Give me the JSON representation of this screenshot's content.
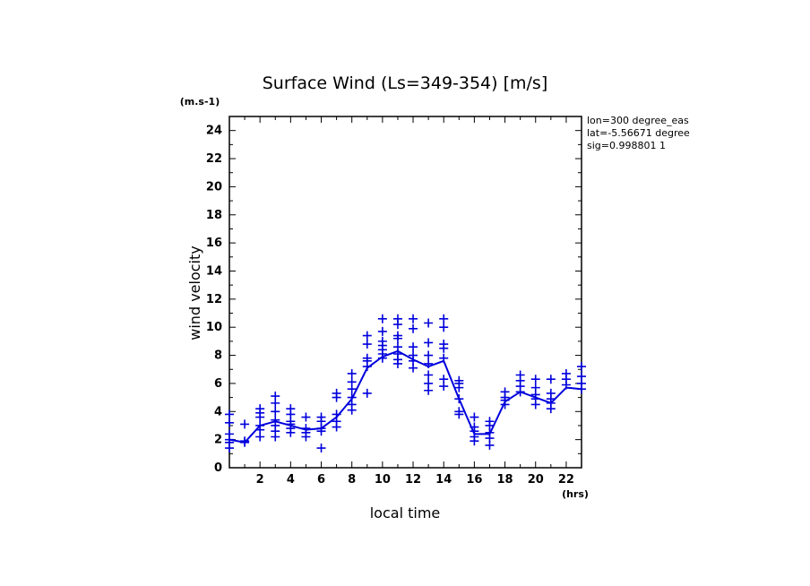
{
  "chart_data": {
    "type": "scatter",
    "title": "Surface Wind  (Ls=349-354) [m/s]",
    "xlabel": "local time",
    "ylabel": "wind velocity",
    "x_unit": "(hrs)",
    "y_unit": "(m.s-1)",
    "xlim": [
      0,
      23
    ],
    "ylim": [
      0,
      25
    ],
    "x_ticks": [
      2,
      4,
      6,
      8,
      10,
      12,
      14,
      16,
      18,
      20,
      22
    ],
    "y_ticks": [
      0,
      2,
      4,
      6,
      8,
      10,
      12,
      14,
      16,
      18,
      20,
      22,
      24
    ],
    "info": [
      "lon=300 degree_eas",
      "lat=-5.56671 degree",
      "sig=0.998801 1"
    ],
    "mean_line": {
      "name": "mean",
      "x": [
        0,
        1,
        2,
        3,
        4,
        5,
        6,
        7,
        8,
        9,
        10,
        11,
        12,
        13,
        14,
        15,
        16,
        17,
        18,
        19,
        20,
        21,
        22,
        23
      ],
      "y": [
        2.0,
        1.8,
        3.0,
        3.3,
        3.0,
        2.7,
        2.8,
        3.6,
        4.9,
        7.1,
        7.9,
        8.3,
        7.7,
        7.2,
        7.6,
        4.9,
        2.4,
        2.4,
        4.7,
        5.4,
        5.0,
        4.6,
        5.7,
        5.6
      ]
    },
    "samples": [
      {
        "x": 0,
        "y": [
          3.2,
          2.4,
          2.0,
          1.8,
          1.4,
          3.8
        ]
      },
      {
        "x": 1,
        "y": [
          1.9,
          1.8,
          3.1
        ]
      },
      {
        "x": 2,
        "y": [
          4.2,
          3.9,
          3.6,
          3.0,
          2.7,
          2.2
        ]
      },
      {
        "x": 3,
        "y": [
          5.1,
          4.6,
          4.0,
          3.4,
          3.0,
          2.6,
          2.2
        ]
      },
      {
        "x": 4,
        "y": [
          4.2,
          3.8,
          3.3,
          3.1,
          2.8,
          2.5
        ]
      },
      {
        "x": 5,
        "y": [
          3.6,
          2.8,
          2.5,
          2.2
        ]
      },
      {
        "x": 6,
        "y": [
          3.6,
          3.3,
          2.8,
          2.6,
          1.4
        ]
      },
      {
        "x": 7,
        "y": [
          5.3,
          5.0,
          3.8,
          3.3,
          2.9
        ]
      },
      {
        "x": 8,
        "y": [
          6.7,
          6.1,
          5.6,
          5.0,
          4.5,
          4.1
        ]
      },
      {
        "x": 9,
        "y": [
          9.4,
          8.8,
          7.8,
          7.6,
          7.2,
          5.3
        ]
      },
      {
        "x": 10,
        "y": [
          10.6,
          9.7,
          9.0,
          8.7,
          8.4,
          8.1,
          7.8
        ]
      },
      {
        "x": 11,
        "y": [
          10.6,
          10.2,
          9.4,
          9.2,
          8.6,
          8.1,
          7.7,
          7.4
        ]
      },
      {
        "x": 12,
        "y": [
          10.6,
          9.9,
          8.6,
          8.0,
          7.6,
          7.1
        ]
      },
      {
        "x": 13,
        "y": [
          10.3,
          8.9,
          8.0,
          7.4,
          6.6,
          6.0,
          5.5
        ]
      },
      {
        "x": 14,
        "y": [
          10.6,
          10.0,
          8.8,
          8.5,
          7.8,
          6.3,
          5.8
        ]
      },
      {
        "x": 15,
        "y": [
          6.2,
          6.0,
          5.7,
          4.9,
          4.0,
          3.8
        ]
      },
      {
        "x": 16,
        "y": [
          3.6,
          2.9,
          2.6,
          2.2,
          1.9
        ]
      },
      {
        "x": 17,
        "y": [
          3.3,
          3.0,
          2.5,
          2.1,
          1.6
        ]
      },
      {
        "x": 18,
        "y": [
          5.4,
          5.0,
          4.8,
          4.5
        ]
      },
      {
        "x": 19,
        "y": [
          6.6,
          6.2,
          5.8,
          5.4
        ]
      },
      {
        "x": 20,
        "y": [
          6.3,
          5.7,
          5.2,
          4.9,
          4.5
        ]
      },
      {
        "x": 21,
        "y": [
          6.3,
          5.3,
          4.9,
          4.6,
          4.2
        ]
      },
      {
        "x": 22,
        "y": [
          6.7,
          6.3,
          5.9
        ]
      },
      {
        "x": 23,
        "y": [
          7.2,
          6.5,
          6.0,
          5.6
        ]
      }
    ]
  },
  "colors": {
    "series": "#0000dd",
    "axis": "#000000",
    "background": "#ffffff"
  }
}
